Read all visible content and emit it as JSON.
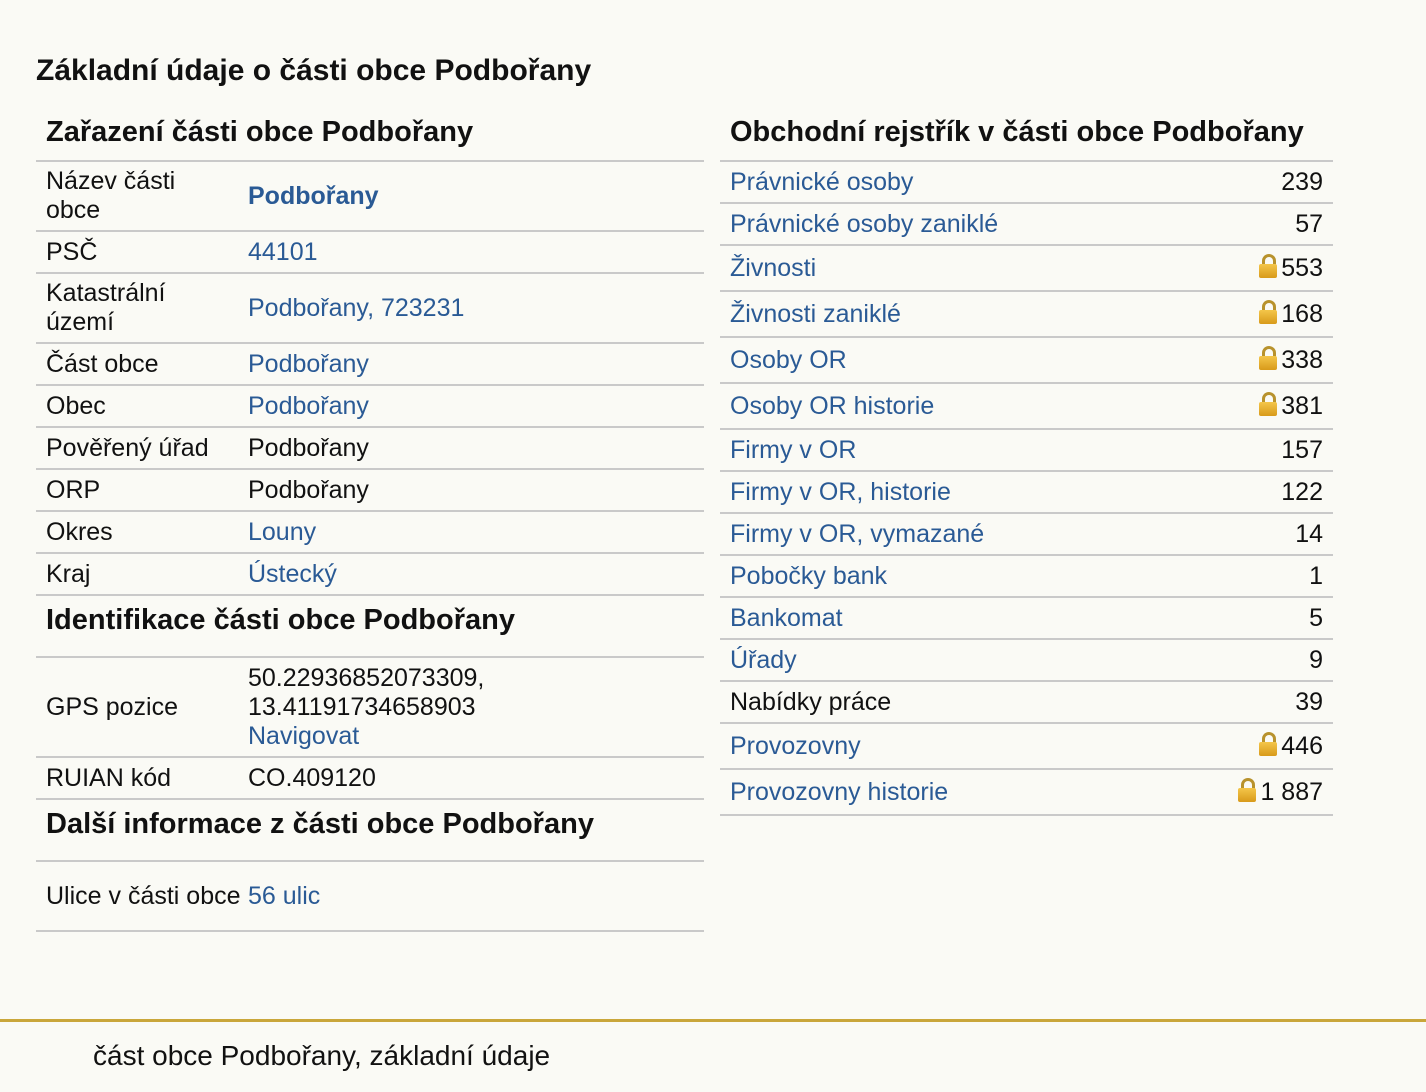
{
  "page_title": "Základní údaje o části obce Podbořany",
  "classification": {
    "heading": "Zařazení části obce Podbořany",
    "rows": [
      {
        "label": "Název části obce",
        "value": "Podbořany",
        "link": true,
        "bold": true
      },
      {
        "label": "PSČ",
        "value": "44101",
        "link": true
      },
      {
        "label": "Katastrální území",
        "value": "Podbořany, 723231",
        "link": true
      },
      {
        "label": "Část obce",
        "value": "Podbořany",
        "link": true
      },
      {
        "label": "Obec",
        "value": "Podbořany",
        "link": true
      },
      {
        "label": "Pověřený úřad",
        "value": "Podbořany",
        "link": false
      },
      {
        "label": "ORP",
        "value": "Podbořany",
        "link": false
      },
      {
        "label": "Okres",
        "value": "Louny",
        "link": true
      },
      {
        "label": "Kraj",
        "value": "Ústecký",
        "link": true
      }
    ]
  },
  "identification": {
    "heading": "Identifikace části obce Podbořany",
    "gps_label": "GPS pozice",
    "gps_lat": "50.22936852073309,",
    "gps_lon": "13.41191734658903",
    "navigate": "Navigovat",
    "ruian_label": "RUIAN kód",
    "ruian_value": "CO.409120"
  },
  "more_info": {
    "heading": "Další informace z části obce Podbořany",
    "streets_label": "Ulice v části obce",
    "streets_value": "56 ulic"
  },
  "registry": {
    "heading": "Obchodní rejstřík v části obce Podbořany",
    "rows": [
      {
        "name": "Právnické osoby",
        "count": "239",
        "link": true,
        "lock": false
      },
      {
        "name": "Právnické osoby zaniklé",
        "count": "57",
        "link": true,
        "lock": false
      },
      {
        "name": "Živnosti",
        "count": "553",
        "link": true,
        "lock": true
      },
      {
        "name": "Živnosti zaniklé",
        "count": "168",
        "link": true,
        "lock": true
      },
      {
        "name": "Osoby OR",
        "count": "338",
        "link": true,
        "lock": true
      },
      {
        "name": "Osoby OR historie",
        "count": "381",
        "link": true,
        "lock": true
      },
      {
        "name": "Firmy v OR",
        "count": "157",
        "link": true,
        "lock": false
      },
      {
        "name": "Firmy v OR, historie",
        "count": "122",
        "link": true,
        "lock": false
      },
      {
        "name": "Firmy v OR, vymazané",
        "count": "14",
        "link": true,
        "lock": false
      },
      {
        "name": "Pobočky bank",
        "count": "1",
        "link": true,
        "lock": false
      },
      {
        "name": "Bankomat",
        "count": "5",
        "link": true,
        "lock": false
      },
      {
        "name": "Úřady",
        "count": "9",
        "link": true,
        "lock": false
      },
      {
        "name": "Nabídky práce",
        "count": "39",
        "link": false,
        "lock": false
      },
      {
        "name": "Provozovny",
        "count": "446",
        "link": true,
        "lock": true
      },
      {
        "name": "Provozovny historie",
        "count": "1 887",
        "link": true,
        "lock": true
      }
    ]
  },
  "footer": "část obce Podbořany, základní údaje"
}
